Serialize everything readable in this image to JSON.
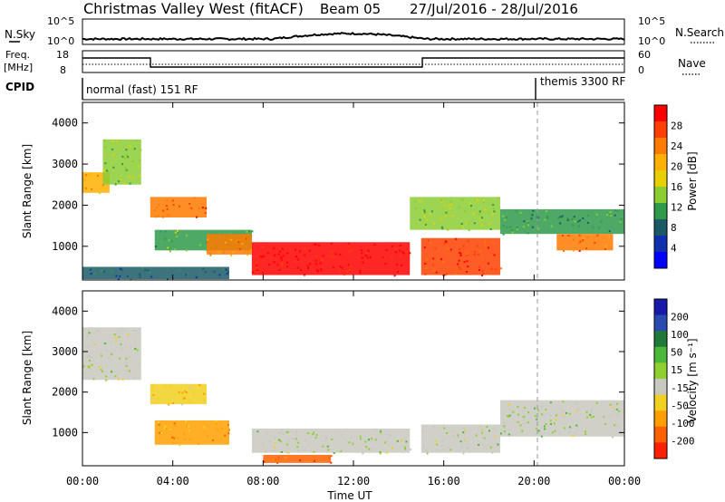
{
  "header": {
    "station": "Christmas Valley West (fitACF)",
    "beam": "Beam 05",
    "date_range": "27/Jul/2016 - 28/Jul/2016"
  },
  "strip_labels": {
    "nsky": "N.Sky",
    "nsearch": "N.Search",
    "freq_line1": "Freq.",
    "freq_line2": "[MHz]",
    "nave": "Nave",
    "cpid": "CPID",
    "nsky_ticks": [
      "10^5",
      "10^0"
    ],
    "nsearch_ticks": [
      "10^5",
      "10^0"
    ],
    "freq_ticks": [
      "18",
      "8"
    ],
    "nave_ticks": [
      "60",
      "0"
    ]
  },
  "cpid_labels": {
    "first": "normal (fast) 151 RF",
    "second": "themis 3300 RF"
  },
  "axes": {
    "y_label": "Slant Range [km]",
    "x_label": "Time UT",
    "y_ticks": [
      "4000",
      "3000",
      "2000",
      "1000"
    ],
    "x_ticks": [
      "00:00",
      "04:00",
      "08:00",
      "12:00",
      "16:00",
      "20:00",
      "00:00"
    ]
  },
  "power_scale": {
    "label": "Power [dB]",
    "ticks": [
      "28",
      "24",
      "20",
      "16",
      "12",
      "8",
      "4"
    ],
    "colors": [
      "#ff0000",
      "#ff4000",
      "#ff7a00",
      "#ffb000",
      "#e8d000",
      "#8ccc33",
      "#2e9a4a",
      "#1a5a66",
      "#1030b0",
      "#0000ff"
    ]
  },
  "velocity_scale": {
    "label": "Velocity [m s⁻¹]",
    "ticks": [
      "200",
      "100",
      "50",
      "15",
      "-15",
      "-50",
      "-100",
      "-200"
    ],
    "colors": [
      "#1a1aaa",
      "#2a4ab0",
      "#1f7a3a",
      "#4cb83a",
      "#8fd030",
      "#c8c8c0",
      "#f0d020",
      "#ffa000",
      "#ff6000",
      "#ff2000"
    ]
  },
  "chart_data": [
    {
      "type": "heatmap",
      "title": "Power [dB]",
      "xlabel": "Time UT",
      "ylabel": "Slant Range [km]",
      "xlim": [
        "00:00",
        "24:00"
      ],
      "ylim": [
        180,
        4500
      ],
      "colorbar_range": [
        0,
        30
      ],
      "regions": [
        {
          "t0": 0.0,
          "t1": 1.2,
          "r0": 2300,
          "r1": 2800,
          "value": 20
        },
        {
          "t0": 0.9,
          "t1": 2.6,
          "r0": 2500,
          "r1": 3600,
          "value": 14
        },
        {
          "t0": 0.0,
          "t1": 6.5,
          "r0": 200,
          "r1": 500,
          "value": 8
        },
        {
          "t0": 3.0,
          "t1": 5.5,
          "r0": 1700,
          "r1": 2200,
          "value": 24
        },
        {
          "t0": 3.2,
          "t1": 7.5,
          "r0": 900,
          "r1": 1400,
          "value": 12
        },
        {
          "t0": 5.5,
          "t1": 7.5,
          "r0": 800,
          "r1": 1300,
          "value": 22
        },
        {
          "t0": 7.5,
          "t1": 14.5,
          "r0": 300,
          "r1": 1100,
          "value": 28
        },
        {
          "t0": 15.0,
          "t1": 18.5,
          "r0": 300,
          "r1": 1200,
          "value": 26
        },
        {
          "t0": 14.5,
          "t1": 18.5,
          "r0": 1400,
          "r1": 2200,
          "value": 14
        },
        {
          "t0": 18.5,
          "t1": 24.0,
          "r0": 1300,
          "r1": 1900,
          "value": 10
        },
        {
          "t0": 21.0,
          "t1": 23.5,
          "r0": 900,
          "r1": 1300,
          "value": 24
        }
      ]
    },
    {
      "type": "heatmap",
      "title": "Velocity [m s⁻¹]",
      "xlabel": "Time UT",
      "ylabel": "Slant Range [km]",
      "xlim": [
        "00:00",
        "24:00"
      ],
      "ylim": [
        180,
        4500
      ],
      "colorbar_range": [
        -200,
        200
      ],
      "regions": [
        {
          "t0": 0.0,
          "t1": 2.6,
          "r0": 2300,
          "r1": 3600,
          "value": 0
        },
        {
          "t0": 3.0,
          "t1": 5.5,
          "r0": 1700,
          "r1": 2200,
          "value": -70
        },
        {
          "t0": 3.2,
          "t1": 6.5,
          "r0": 700,
          "r1": 1300,
          "value": -90
        },
        {
          "t0": 7.5,
          "t1": 14.5,
          "r0": 500,
          "r1": 1100,
          "value": 0
        },
        {
          "t0": 8.0,
          "t1": 11.0,
          "r0": 250,
          "r1": 450,
          "value": -150
        },
        {
          "t0": 15.0,
          "t1": 18.5,
          "r0": 500,
          "r1": 1200,
          "value": 0
        },
        {
          "t0": 18.5,
          "t1": 24.0,
          "r0": 900,
          "r1": 1800,
          "value": 0
        }
      ]
    }
  ]
}
